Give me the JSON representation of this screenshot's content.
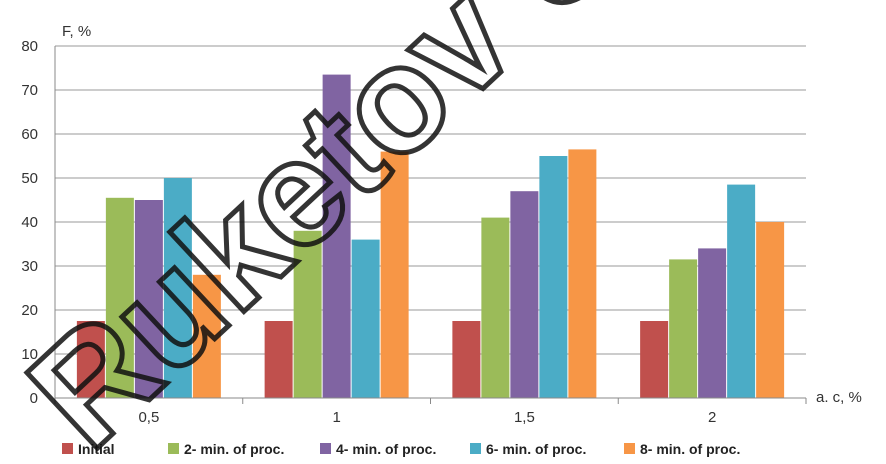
{
  "chart_data": {
    "type": "bar",
    "categories": [
      "0,5",
      "1",
      "1,5",
      "2"
    ],
    "series": [
      {
        "name": "Initial",
        "color": "#c0504d",
        "values": [
          17.5,
          17.5,
          17.5,
          17.5
        ]
      },
      {
        "name": "2- min. of proc.",
        "color": "#9bbb59",
        "values": [
          45.5,
          38,
          41,
          31.5
        ]
      },
      {
        "name": "4- min. of proc.",
        "color": "#8064a2",
        "values": [
          45,
          73.5,
          47,
          34
        ]
      },
      {
        "name": "6- min. of proc.",
        "color": "#4bacc6",
        "values": [
          50,
          36,
          55,
          48.5
        ]
      },
      {
        "name": "8- min. of proc.",
        "color": "#f79646",
        "values": [
          28,
          56,
          56.5,
          40
        ]
      }
    ],
    "ylabel": "F, %",
    "xlabel": "a. c, %",
    "ylim": [
      0,
      80
    ],
    "yticks": [
      0,
      10,
      20,
      30,
      40,
      50,
      60,
      70,
      80
    ],
    "grid": true,
    "legend_position": "bottom"
  },
  "watermark": {
    "text": "Ruketov Un",
    "icon": "watermark-text"
  }
}
